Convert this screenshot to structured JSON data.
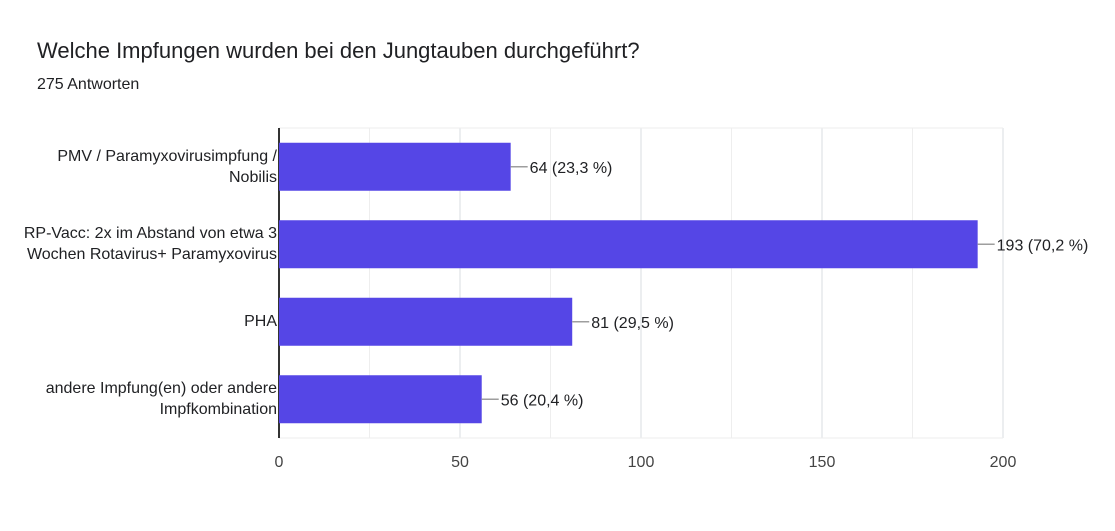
{
  "title": "Welche Impfungen wurden bei den Jungtauben durchgeführt?",
  "response_count": "275 Antworten",
  "chart_data": {
    "type": "bar",
    "orientation": "horizontal",
    "categories": [
      "PMV / Paramyxovirusimpfung / Nobilis",
      "RP-Vacc: 2x im Abstand von etwa 3 Wochen Rotavirus+ Paramyxovirus",
      "PHA",
      "andere Impfung(en) oder andere Impfkombination"
    ],
    "values": [
      64,
      193,
      81,
      56
    ],
    "data_labels": [
      "64 (23,3 %)",
      "193 (70,2 %)",
      "81 (29,5 %)",
      "56 (20,4 %)"
    ],
    "xlim": [
      0,
      200
    ],
    "xticks": [
      "0",
      "50",
      "100",
      "150",
      "200"
    ],
    "grid": true,
    "bar_color": "#5546e6"
  }
}
